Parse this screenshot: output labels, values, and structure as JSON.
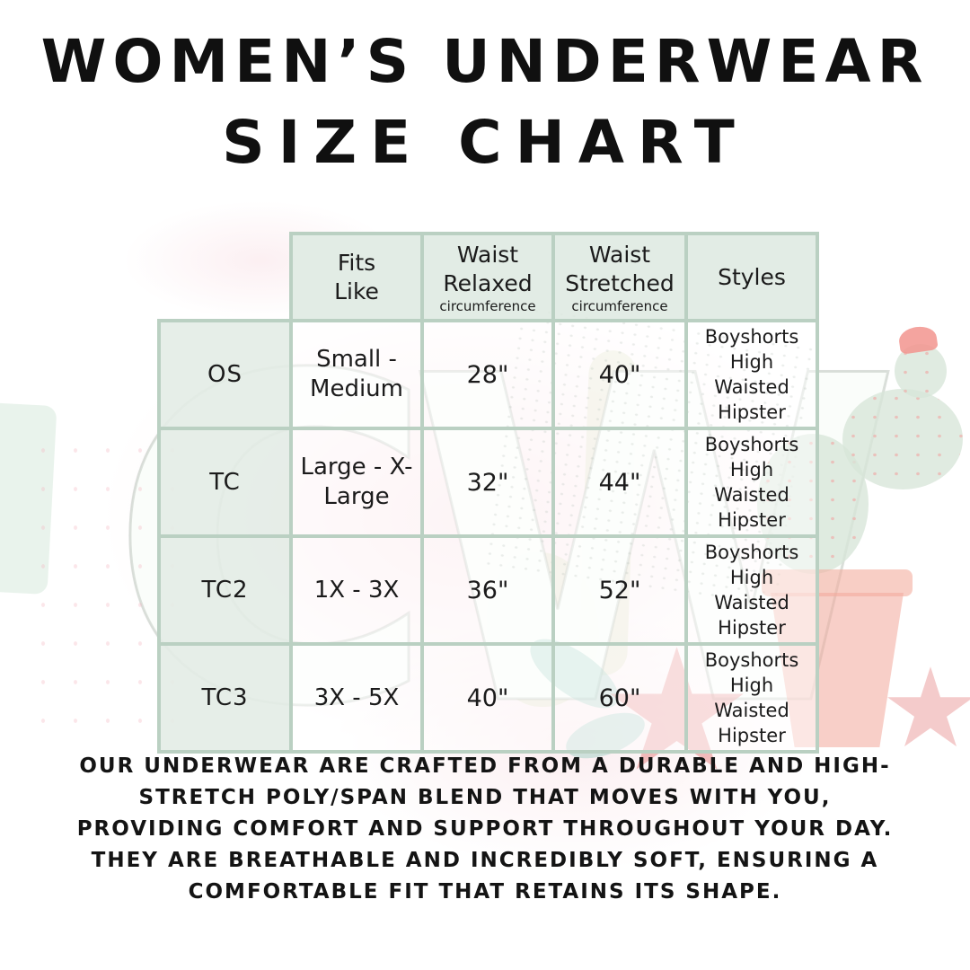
{
  "title": {
    "line1": "WOMEN’S UNDERWEAR",
    "line2": "SIZE CHART"
  },
  "watermark": {
    "monogram": "CW"
  },
  "table": {
    "headers": [
      {
        "line1": "Fits",
        "line2": "Like",
        "sub": ""
      },
      {
        "line1": "Waist",
        "line2": "Relaxed",
        "sub": "circumference"
      },
      {
        "line1": "Waist",
        "line2": "Stretched",
        "sub": "circumference"
      },
      {
        "line1": "Styles",
        "line2": "",
        "sub": ""
      }
    ],
    "rows": [
      {
        "size": "OS",
        "fits": "Small - Medium",
        "waist_relaxed": "28\"",
        "waist_stretched": "40\"",
        "style1": "Boyshorts",
        "style2": "High Waisted",
        "style3": "Hipster"
      },
      {
        "size": "TC",
        "fits": "Large - X-Large",
        "waist_relaxed": "32\"",
        "waist_stretched": "44\"",
        "style1": "Boyshorts",
        "style2": "High Waisted",
        "style3": "Hipster"
      },
      {
        "size": "TC2",
        "fits": "1X - 3X",
        "waist_relaxed": "36\"",
        "waist_stretched": "52\"",
        "style1": "Boyshorts",
        "style2": "High Waisted",
        "style3": "Hipster"
      },
      {
        "size": "TC3",
        "fits": "3X - 5X",
        "waist_relaxed": "40\"",
        "waist_stretched": "60\"",
        "style1": "Boyshorts",
        "style2": "High Waisted",
        "style3": "Hipster"
      }
    ]
  },
  "description": {
    "lines": [
      "OUR UNDERWEAR ARE CRAFTED FROM A DURABLE AND HIGH-",
      "STRETCH POLY/SPAN BLEND THAT MOVES WITH YOU,",
      "PROVIDING COMFORT AND SUPPORT THROUGHOUT YOUR DAY.",
      "THEY ARE BREATHABLE AND INCREDIBLY SOFT, ENSURING A",
      "COMFORTABLE FIT THAT RETAINS ITS SHAPE."
    ]
  },
  "colors": {
    "table_border": "#bad0c2",
    "header_fill": "#e2ebe4",
    "text": "#1b1b1b",
    "watermark_pink": "#f7d6dc",
    "watermark_green": "#d7e6d9",
    "watermark_red": "#e88888",
    "watermark_coral": "#f2a89a"
  }
}
